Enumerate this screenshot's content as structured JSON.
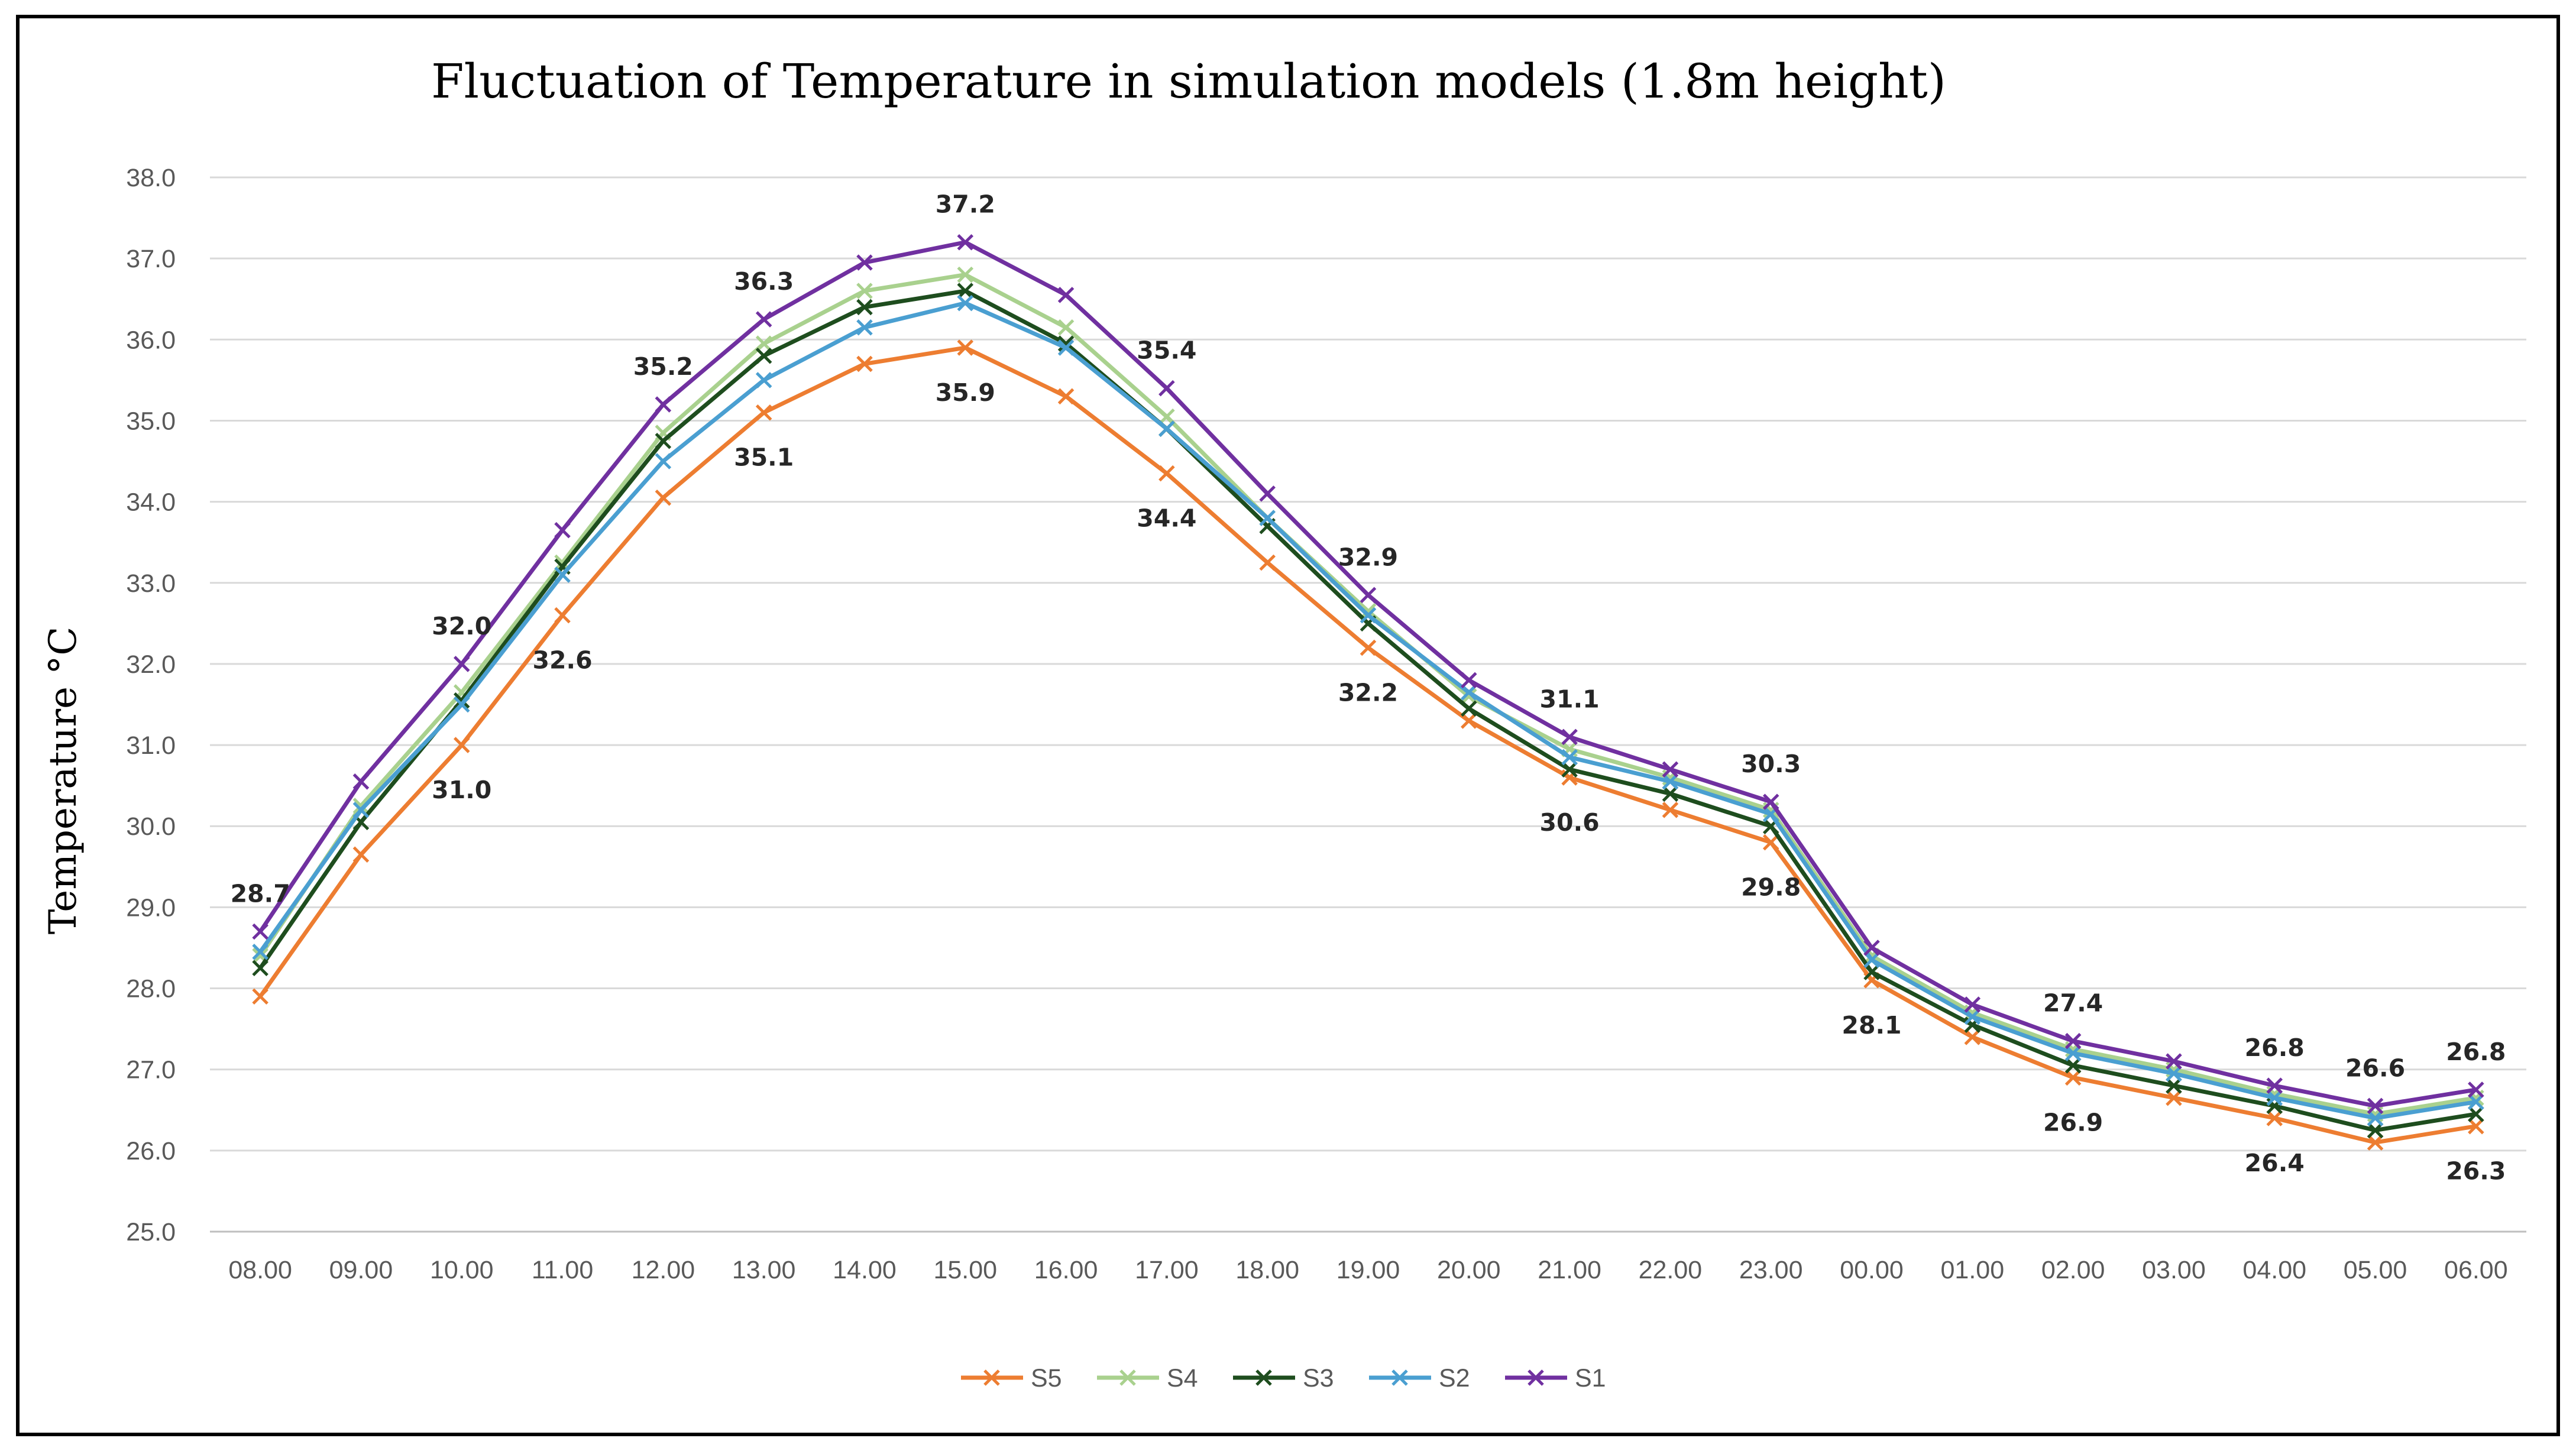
{
  "chart_data": {
    "type": "line",
    "title": "Fluctuation of Temperature in simulation models (1.8m height)",
    "xlabel": "",
    "ylabel": "Temperature  °C",
    "ylim": [
      25.0,
      38.0
    ],
    "yticks": [
      "25.0",
      "26.0",
      "27.0",
      "28.0",
      "29.0",
      "30.0",
      "31.0",
      "32.0",
      "33.0",
      "34.0",
      "35.0",
      "36.0",
      "37.0",
      "38.0"
    ],
    "grid": true,
    "legend": "bottom",
    "categories": [
      "08.00",
      "09.00",
      "10.00",
      "11.00",
      "12.00",
      "13.00",
      "14.00",
      "15.00",
      "16.00",
      "17.00",
      "18.00",
      "19.00",
      "20.00",
      "21.00",
      "22.00",
      "23.00",
      "00.00",
      "01.00",
      "02.00",
      "03.00",
      "04.00",
      "05.00",
      "06.00"
    ],
    "series": [
      {
        "name": "S5",
        "color": "#ed7d31",
        "values": [
          27.9,
          29.65,
          31.0,
          32.6,
          34.05,
          35.1,
          35.7,
          35.9,
          35.3,
          34.35,
          33.25,
          32.2,
          31.3,
          30.6,
          30.2,
          29.8,
          28.1,
          27.4,
          26.9,
          26.65,
          26.4,
          26.1,
          26.3
        ]
      },
      {
        "name": "S4",
        "color": "#a9d18e",
        "values": [
          28.4,
          30.25,
          31.65,
          33.25,
          34.85,
          35.95,
          36.6,
          36.8,
          36.15,
          35.05,
          33.8,
          32.65,
          31.6,
          30.95,
          30.6,
          30.2,
          28.4,
          27.7,
          27.25,
          27.0,
          26.7,
          26.45,
          26.65
        ]
      },
      {
        "name": "S3",
        "color": "#1e4d1e",
        "values": [
          28.25,
          30.05,
          31.55,
          33.2,
          34.75,
          35.8,
          36.4,
          36.6,
          35.95,
          34.9,
          33.7,
          32.5,
          31.45,
          30.7,
          30.4,
          30.0,
          28.2,
          27.55,
          27.05,
          26.8,
          26.55,
          26.25,
          26.45
        ]
      },
      {
        "name": "S2",
        "color": "#4a9fd1",
        "values": [
          28.45,
          30.2,
          31.5,
          33.1,
          34.5,
          35.5,
          36.15,
          36.45,
          35.9,
          34.9,
          33.8,
          32.6,
          31.65,
          30.85,
          30.55,
          30.15,
          28.35,
          27.65,
          27.2,
          26.95,
          26.65,
          26.4,
          26.6
        ]
      },
      {
        "name": "S1",
        "color": "#7030a0",
        "values": [
          28.7,
          30.55,
          32.0,
          33.65,
          35.2,
          36.25,
          36.95,
          37.2,
          36.55,
          35.4,
          34.1,
          32.85,
          31.8,
          31.1,
          30.7,
          30.3,
          28.5,
          27.8,
          27.35,
          27.1,
          26.8,
          26.55,
          26.75
        ]
      }
    ],
    "annotations": [
      {
        "series": "S1",
        "x": "08.00",
        "text": "28.7",
        "pos": "above"
      },
      {
        "series": "S1",
        "x": "10.00",
        "text": "32.0",
        "pos": "above"
      },
      {
        "series": "S5",
        "x": "10.00",
        "text": "31.0",
        "pos": "below"
      },
      {
        "series": "S5",
        "x": "11.00",
        "text": "32.6",
        "pos": "below"
      },
      {
        "series": "S1",
        "x": "12.00",
        "text": "35.2",
        "pos": "above"
      },
      {
        "series": "S1",
        "x": "13.00",
        "text": "36.3",
        "pos": "above"
      },
      {
        "series": "S5",
        "x": "13.00",
        "text": "35.1",
        "pos": "below"
      },
      {
        "series": "S1",
        "x": "15.00",
        "text": "37.2",
        "pos": "above"
      },
      {
        "series": "S5",
        "x": "15.00",
        "text": "35.9",
        "pos": "below"
      },
      {
        "series": "S1",
        "x": "17.00",
        "text": "35.4",
        "pos": "above"
      },
      {
        "series": "S5",
        "x": "17.00",
        "text": "34.4",
        "pos": "below"
      },
      {
        "series": "S1",
        "x": "19.00",
        "text": "32.9",
        "pos": "above"
      },
      {
        "series": "S5",
        "x": "19.00",
        "text": "32.2",
        "pos": "below"
      },
      {
        "series": "S1",
        "x": "21.00",
        "text": "31.1",
        "pos": "above"
      },
      {
        "series": "S5",
        "x": "21.00",
        "text": "30.6",
        "pos": "below"
      },
      {
        "series": "S1",
        "x": "23.00",
        "text": "30.3",
        "pos": "above"
      },
      {
        "series": "S5",
        "x": "23.00",
        "text": "29.8",
        "pos": "below"
      },
      {
        "series": "S5",
        "x": "00.00",
        "text": "28.1",
        "pos": "below"
      },
      {
        "series": "S1",
        "x": "02.00",
        "text": "27.4",
        "pos": "above"
      },
      {
        "series": "S5",
        "x": "02.00",
        "text": "26.9",
        "pos": "below"
      },
      {
        "series": "S1",
        "x": "04.00",
        "text": "26.8",
        "pos": "above"
      },
      {
        "series": "S5",
        "x": "04.00",
        "text": "26.4",
        "pos": "below"
      },
      {
        "series": "S1",
        "x": "05.00",
        "text": "26.6",
        "pos": "above"
      },
      {
        "series": "S1",
        "x": "06.00",
        "text": "26.8",
        "pos": "above"
      },
      {
        "series": "S5",
        "x": "06.00",
        "text": "26.3",
        "pos": "below"
      }
    ]
  }
}
